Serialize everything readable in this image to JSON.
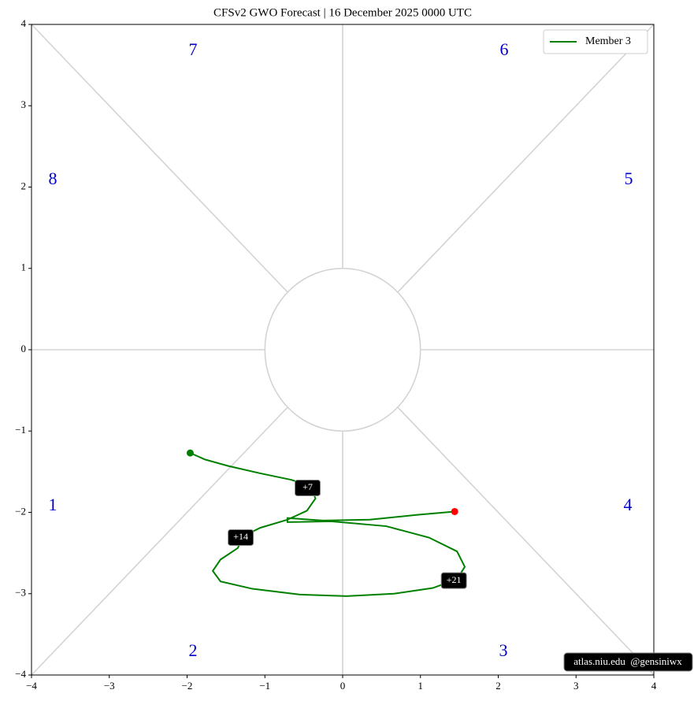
{
  "chart_data": {
    "type": "phase",
    "title": "CFSv2 GWO Forecast   |   16  December  2025 0000 UTC",
    "series": [
      {
        "name": "Member 3",
        "color": "#008000",
        "x": [
          -1.96,
          -1.77,
          -1.47,
          -1.06,
          -0.66,
          -0.41,
          -0.35,
          -0.46,
          -0.71,
          -1.06,
          -1.27,
          -1.35,
          -1.57,
          -1.67,
          -1.57,
          -1.16,
          -0.56,
          0.05,
          0.66,
          1.16,
          1.47,
          1.57,
          1.47,
          1.11,
          0.56,
          -0.15,
          -0.71,
          -0.71,
          -0.25,
          0.35,
          0.96,
          1.44
        ],
        "y": [
          -1.27,
          -1.35,
          -1.43,
          -1.52,
          -1.6,
          -1.68,
          -1.83,
          -1.98,
          -2.09,
          -2.19,
          -2.29,
          -2.44,
          -2.58,
          -2.72,
          -2.85,
          -2.94,
          -3.01,
          -3.03,
          -3.0,
          -2.93,
          -2.82,
          -2.67,
          -2.48,
          -2.31,
          -2.17,
          -2.11,
          -2.12,
          -2.07,
          -2.1,
          -2.09,
          -2.03,
          -1.99
        ]
      }
    ],
    "start_color": "#008000",
    "end_color": "#ff0000",
    "annotations": [
      "+7",
      "+14",
      "+21"
    ],
    "phase_labels": [
      "1",
      "2",
      "3",
      "4",
      "5",
      "6",
      "7",
      "8"
    ],
    "phase_color": "#0000cc",
    "xlim": [
      -4,
      4
    ],
    "ylim": [
      -4,
      4
    ],
    "xticks": [
      {
        "value": -4,
        "label": "−4"
      },
      {
        "value": -3,
        "label": "−3"
      },
      {
        "value": -2,
        "label": "−2"
      },
      {
        "value": -1,
        "label": "−1"
      },
      0,
      1,
      2,
      3,
      4
    ],
    "yticks": [
      {
        "value": -4,
        "label": "−4"
      },
      {
        "value": -3,
        "label": "−3"
      },
      {
        "value": -2,
        "label": "−2"
      },
      {
        "value": -1,
        "label": "−1"
      },
      0,
      1,
      2,
      3,
      4
    ],
    "legend": "upper right",
    "credit": "atlas.niu.edu  @gensiniwx"
  }
}
